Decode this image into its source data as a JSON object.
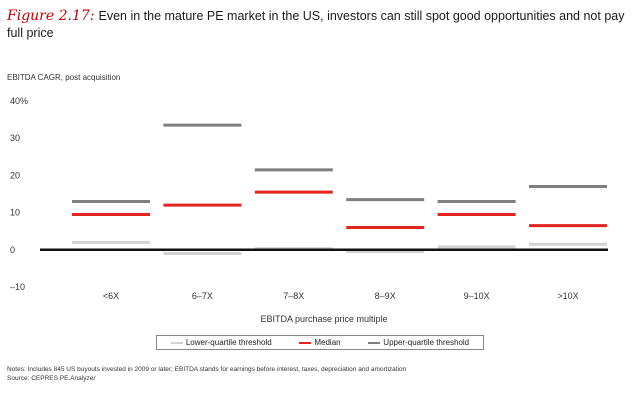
{
  "title": {
    "figure_label": "Figure 2.17:",
    "text": "Even in the mature PE market in the US, investors can still spot good opportunities and not pay full price"
  },
  "notes": {
    "line1": "Notes: Includes 845 US buyouts invested in 2009 or later; EBITDA stands for earnings before interest, taxes, depreciation and amortization",
    "line2": "Source: CEPRES PE.Analyzer"
  },
  "legend": {
    "lower": "Lower-quartile threshold",
    "median": "Median",
    "upper": "Upper-quartile threshold"
  },
  "colors": {
    "lower": "#d3d3d3",
    "median": "#e52420",
    "upper": "#7f7f7f",
    "zero_line": "#111111"
  },
  "chart_data": {
    "type": "line",
    "title": "Even in the mature PE market in the US, investors can still spot good opportunities and not pay full price",
    "ylabel": "EBITDA CAGR, post acquisition",
    "xlabel": "EBITDA purchase price multiple",
    "ylim": [
      -10,
      40
    ],
    "yticks": [
      -10,
      0,
      10,
      20,
      30,
      40
    ],
    "ytick_labels": [
      "–10",
      "0",
      "10",
      "20",
      "30",
      "40%"
    ],
    "categories": [
      "<6X",
      "6–7X",
      "7–8X",
      "8–9X",
      "9–10X",
      ">10X"
    ],
    "series": [
      {
        "name": "Lower-quartile threshold",
        "values": [
          2,
          -1,
          0.3,
          -0.5,
          0.8,
          1.5
        ]
      },
      {
        "name": "Median",
        "values": [
          9.5,
          12,
          15.5,
          6,
          9.5,
          6.5
        ]
      },
      {
        "name": "Upper-quartile threshold",
        "values": [
          13,
          33.5,
          21.5,
          13.5,
          13,
          17
        ]
      }
    ]
  }
}
